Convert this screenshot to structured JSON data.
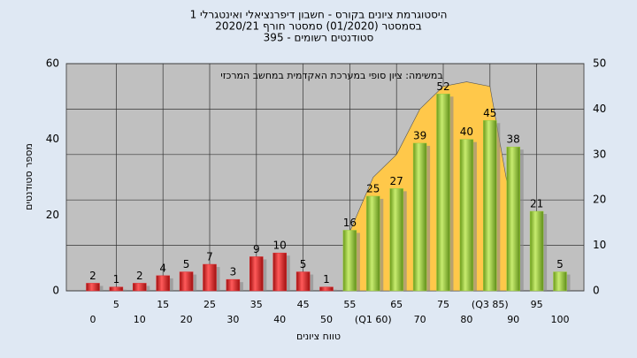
{
  "chart_data": {
    "type": "bar",
    "title": "היסטוגרמת ציונים בקורס - חשבון דיפרנציאלי ואינטגרלי 1",
    "subtitle": "בסמסטר  (01/2020)  סמסטר חורף  2020/21",
    "subtitle2": "סטודנטים רשומים - 395",
    "annotation": "במשימה: ציון סופי במערכת האקדמית במחשב המרכזי",
    "x_label": "טווח ציונים",
    "y_label": "מספר סטודנטים",
    "categories": [
      "0",
      "5",
      "10",
      "15",
      "20",
      "25",
      "30",
      "35",
      "40",
      "45",
      "50",
      "55",
      "(Q1 60)",
      "65",
      "70",
      "75",
      "80",
      "(Q3 85)",
      "90",
      "95",
      "100"
    ],
    "series": [
      {
        "color": "#e0282c",
        "values": [
          2,
          1,
          2,
          4,
          5,
          7,
          3,
          9,
          10,
          5,
          1,
          null,
          null,
          null,
          null,
          null,
          null,
          null,
          null,
          null,
          null
        ]
      },
      {
        "color": "#9ccc3c",
        "values": [
          null,
          null,
          null,
          null,
          null,
          null,
          null,
          null,
          null,
          null,
          null,
          16,
          25,
          27,
          39,
          52,
          40,
          45,
          38,
          21,
          5
        ]
      },
      {
        "type": "area",
        "axis": "y2",
        "color": "#ffc84a",
        "values": [
          null,
          null,
          null,
          null,
          null,
          null,
          null,
          null,
          null,
          null,
          null,
          13,
          25,
          30,
          40,
          45,
          46,
          45,
          16,
          null,
          null
        ]
      }
    ],
    "ylim": [
      0,
      60
    ],
    "yticks": [
      0,
      20,
      40,
      60
    ],
    "y2lim": [
      0,
      50
    ],
    "y2ticks": [
      0,
      10,
      20,
      30,
      40,
      50
    ],
    "grid": true
  }
}
